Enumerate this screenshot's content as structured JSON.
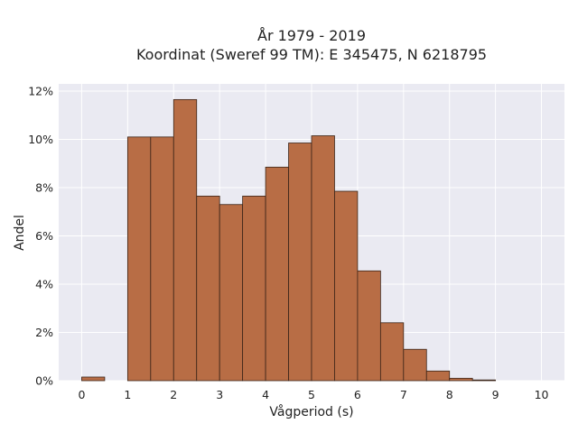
{
  "chart_data": {
    "type": "bar",
    "title_line1": "År 1979 - 2019",
    "title_line2": "Koordinat (Sweref 99 TM): E 345475, N 6218795",
    "xlabel": "Vågperiod (s)",
    "ylabel": "Andel",
    "bin_width": 0.5,
    "x": [
      0,
      0.5,
      1,
      1.5,
      2,
      2.5,
      3,
      3.5,
      4,
      4.5,
      5,
      5.5,
      6,
      6.5,
      7,
      7.5,
      8,
      8.5,
      9,
      9.5
    ],
    "values": [
      0.15,
      0,
      10.1,
      10.1,
      11.65,
      7.65,
      7.3,
      7.65,
      8.85,
      9.85,
      10.15,
      7.85,
      4.55,
      2.4,
      1.3,
      0.4,
      0.1,
      0.03,
      0,
      0
    ],
    "xlim": [
      -0.5,
      10.5
    ],
    "ylim": [
      0,
      12.3
    ],
    "xticks": [
      "0",
      "1",
      "2",
      "3",
      "4",
      "5",
      "6",
      "7",
      "8",
      "9",
      "10"
    ],
    "yticks": [
      "0%",
      "2%",
      "4%",
      "6%",
      "8%",
      "10%",
      "12%"
    ],
    "ytick_values": [
      0,
      2,
      4,
      6,
      8,
      10,
      12
    ],
    "grid": true,
    "colors": {
      "bar": "#b86d45",
      "bar_edge": "#3a2418",
      "plot_bg": "#eaeaf2",
      "grid": "#ffffff"
    }
  }
}
